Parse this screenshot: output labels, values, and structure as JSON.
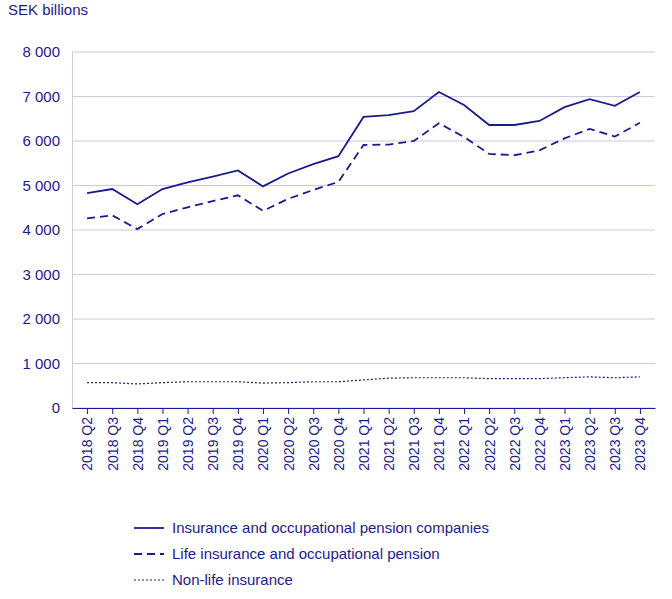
{
  "chart_data": {
    "type": "line",
    "y_label": "SEK billions",
    "categories": [
      "2018 Q2",
      "2018 Q3",
      "2018 Q4",
      "2019 Q1",
      "2019 Q2",
      "2019 Q3",
      "2019 Q4",
      "2020 Q1",
      "2020 Q2",
      "2020 Q3",
      "2020 Q4",
      "2021 Q1",
      "2021 Q2",
      "2021 Q3",
      "2021 Q4",
      "2022 Q1",
      "2022 Q2",
      "2022 Q3",
      "2022 Q4",
      "2023 Q1",
      "2023 Q2",
      "2023 Q3",
      "2023 Q4"
    ],
    "series": [
      {
        "name": "Insurance and occupational pension companies",
        "color": "#1b1b8f",
        "line_style": "solid",
        "values": [
          4830,
          4920,
          4580,
          4920,
          5070,
          5200,
          5340,
          4980,
          5270,
          5480,
          5660,
          6540,
          6580,
          6670,
          7100,
          6810,
          6360,
          6360,
          6450,
          6760,
          6940,
          6790,
          7100
        ]
      },
      {
        "name": "Life insurance and occupational pension",
        "color": "#1b1b8f",
        "line_style": "dashed",
        "values": [
          4260,
          4330,
          4020,
          4360,
          4510,
          4650,
          4780,
          4430,
          4700,
          4900,
          5080,
          5910,
          5920,
          6000,
          6400,
          6090,
          5710,
          5680,
          5790,
          6060,
          6270,
          6100,
          6410
        ]
      },
      {
        "name": "Non-life insurance",
        "color": "#1b1b8f",
        "line_style": "dotted",
        "values": [
          570,
          570,
          540,
          570,
          590,
          590,
          590,
          560,
          570,
          590,
          590,
          630,
          670,
          680,
          680,
          680,
          660,
          660,
          660,
          680,
          700,
          680,
          700
        ]
      }
    ],
    "ylim": [
      0,
      8000
    ],
    "yticks": [
      0,
      {
        "value": 1000,
        "label": "1 000"
      },
      {
        "value": 2000,
        "label": "2 000"
      },
      {
        "value": 3000,
        "label": "3 000"
      },
      {
        "value": 4000,
        "label": "4 000"
      },
      {
        "value": 5000,
        "label": "5 000"
      },
      {
        "value": 6000,
        "label": "6 000"
      },
      {
        "value": 7000,
        "label": "7 000"
      },
      {
        "value": 8000,
        "label": "8 000"
      }
    ],
    "grid": true,
    "legend": "bottom"
  }
}
